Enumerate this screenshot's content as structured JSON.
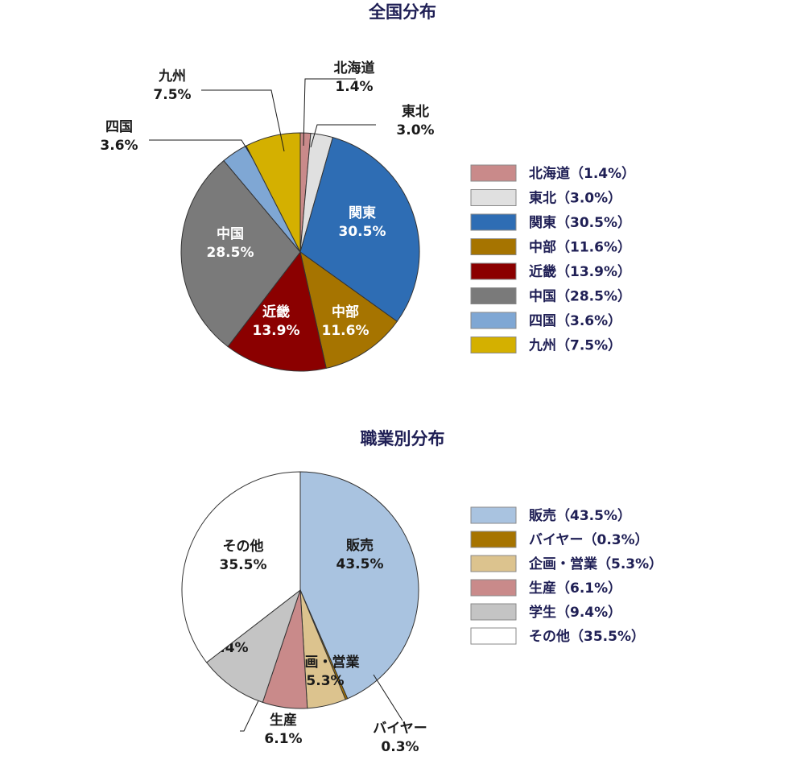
{
  "chart_data": [
    {
      "type": "pie",
      "title": "全国分布",
      "slices": [
        {
          "name": "北海道",
          "value": 1.4,
          "value_label": "1.4%",
          "legend": "北海道（1.4%）",
          "color": "#c98a8a"
        },
        {
          "name": "東北",
          "value": 3.0,
          "value_label": "3.0%",
          "legend": "東北（3.0%）",
          "color": "#e0e0e0"
        },
        {
          "name": "関東",
          "value": 30.5,
          "value_label": "30.5%",
          "legend": "関東（30.5%）",
          "color": "#2e6db4"
        },
        {
          "name": "中部",
          "value": 11.6,
          "value_label": "11.6%",
          "legend": "中部（11.6%）",
          "color": "#a67400"
        },
        {
          "name": "近畿",
          "value": 13.9,
          "value_label": "13.9%",
          "legend": "近畿（13.9%）",
          "color": "#8b0000"
        },
        {
          "name": "中国",
          "value": 28.5,
          "value_label": "28.5%",
          "legend": "中国（28.5%）",
          "color": "#7a7a7a"
        },
        {
          "name": "四国",
          "value": 3.6,
          "value_label": "3.6%",
          "legend": "四国（3.6%）",
          "color": "#7fa7d4"
        },
        {
          "name": "九州",
          "value": 7.5,
          "value_label": "7.5%",
          "legend": "九州（7.5%）",
          "color": "#d4b000"
        }
      ],
      "legend_position": "right"
    },
    {
      "type": "pie",
      "title": "職業別分布",
      "slices": [
        {
          "name": "販売",
          "value": 43.5,
          "value_label": "43.5%",
          "legend": "販売（43.5%）",
          "color": "#a9c3e0"
        },
        {
          "name": "バイヤー",
          "value": 0.3,
          "value_label": "0.3%",
          "legend": "バイヤー（0.3%）",
          "color": "#a67400"
        },
        {
          "name": "企画・営業",
          "value": 5.3,
          "value_label": "5.3%",
          "legend": "企画・営業（5.3%）",
          "color": "#dcc38e"
        },
        {
          "name": "生産",
          "value": 6.1,
          "value_label": "6.1%",
          "legend": "生産（6.1%）",
          "color": "#c98a8a"
        },
        {
          "name": "学生",
          "value": 9.4,
          "value_label": "9.4%",
          "legend": "学生（9.4%）",
          "color": "#c4c4c4"
        },
        {
          "name": "その他",
          "value": 35.5,
          "value_label": "35.5%",
          "legend": "その他（35.5%）",
          "color": "#ffffff"
        }
      ],
      "legend_position": "right"
    }
  ]
}
